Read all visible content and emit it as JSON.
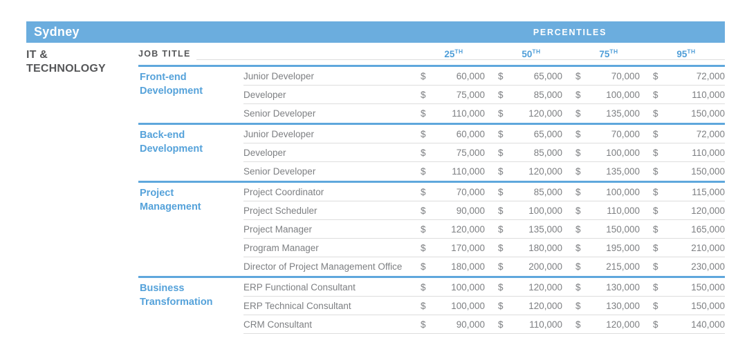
{
  "page": {
    "location": "Sydney",
    "percentiles_label": "PERCENTILES",
    "section_label_line1": "IT &",
    "section_label_line2": "TECHNOLOGY",
    "job_title_header": "JOB TITLE",
    "currency": "$"
  },
  "columns": [
    {
      "num": "25",
      "sup": "TH"
    },
    {
      "num": "50",
      "sup": "TH"
    },
    {
      "num": "75",
      "sup": "TH"
    },
    {
      "num": "95",
      "sup": "TH"
    }
  ],
  "groups": [
    {
      "category": "Front-end Development",
      "rows": [
        {
          "title": "Junior Developer",
          "values": [
            "60,000",
            "65,000",
            "70,000",
            "72,000"
          ]
        },
        {
          "title": "Developer",
          "values": [
            "75,000",
            "85,000",
            "100,000",
            "110,000"
          ]
        },
        {
          "title": "Senior Developer",
          "values": [
            "110,000",
            "120,000",
            "135,000",
            "150,000"
          ]
        }
      ]
    },
    {
      "category": "Back-end Development",
      "rows": [
        {
          "title": "Junior Developer",
          "values": [
            "60,000",
            "65,000",
            "70,000",
            "72,000"
          ]
        },
        {
          "title": "Developer",
          "values": [
            "75,000",
            "85,000",
            "100,000",
            "110,000"
          ]
        },
        {
          "title": "Senior Developer",
          "values": [
            "110,000",
            "120,000",
            "135,000",
            "150,000"
          ]
        }
      ]
    },
    {
      "category": "Project Management",
      "rows": [
        {
          "title": "Project Coordinator",
          "values": [
            "70,000",
            "85,000",
            "100,000",
            "115,000"
          ]
        },
        {
          "title": "Project Scheduler",
          "values": [
            "90,000",
            "100,000",
            "110,000",
            "120,000"
          ]
        },
        {
          "title": "Project Manager",
          "values": [
            "120,000",
            "135,000",
            "150,000",
            "165,000"
          ]
        },
        {
          "title": "Program Manager",
          "values": [
            "170,000",
            "180,000",
            "195,000",
            "210,000"
          ]
        },
        {
          "title": "Director of Project Management Office",
          "values": [
            "180,000",
            "200,000",
            "215,000",
            "230,000"
          ]
        }
      ]
    },
    {
      "category": "Business Transformation",
      "rows": [
        {
          "title": "ERP Functional Consultant",
          "values": [
            "100,000",
            "120,000",
            "130,000",
            "150,000"
          ]
        },
        {
          "title": "ERP Technical Consultant",
          "values": [
            "100,000",
            "120,000",
            "130,000",
            "150,000"
          ]
        },
        {
          "title": "CRM Consultant",
          "values": [
            "90,000",
            "110,000",
            "120,000",
            "140,000"
          ]
        }
      ]
    }
  ],
  "colors": {
    "bar_blue": "#6badde",
    "accent_blue": "#55a2da",
    "divider_blue": "#5ea7dc",
    "header_text_dark": "#565759",
    "body_text_gray": "#7d7f82",
    "hairline_gray": "#dddddd"
  }
}
